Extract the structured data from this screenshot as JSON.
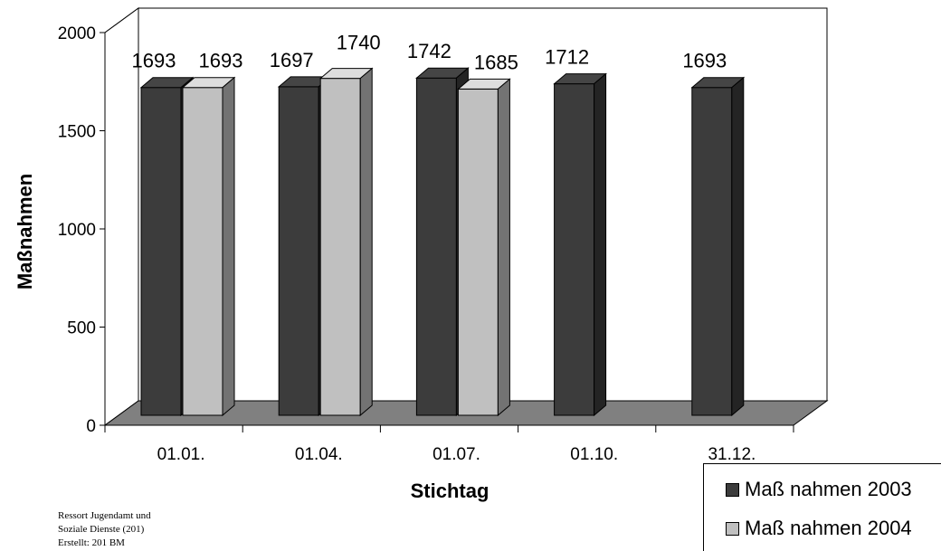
{
  "chart_data": {
    "type": "bar",
    "categories": [
      "01.01.",
      "01.04.",
      "01.07.",
      "01.10.",
      "31.12."
    ],
    "series": [
      {
        "name": "Maß nahmen 2003",
        "values": [
          1693,
          1697,
          1742,
          1712,
          1693
        ],
        "color": "#3c3c3c"
      },
      {
        "name": "Maß nahmen 2004",
        "values": [
          1693,
          1740,
          1685,
          null,
          null
        ],
        "color": "#c0c0c0"
      }
    ],
    "xlabel": "Stichtag",
    "ylabel": "Maßnahmen",
    "ylim": [
      0,
      2000
    ],
    "yticks": [
      0,
      500,
      1000,
      1500,
      2000
    ],
    "legend": "bottom-right",
    "style": "3d-column",
    "floor_color": "#808080"
  },
  "footnote": [
    "Ressort Jugendamt und",
    "Soziale Dienste (201)",
    "Erstellt: 201 BM"
  ]
}
